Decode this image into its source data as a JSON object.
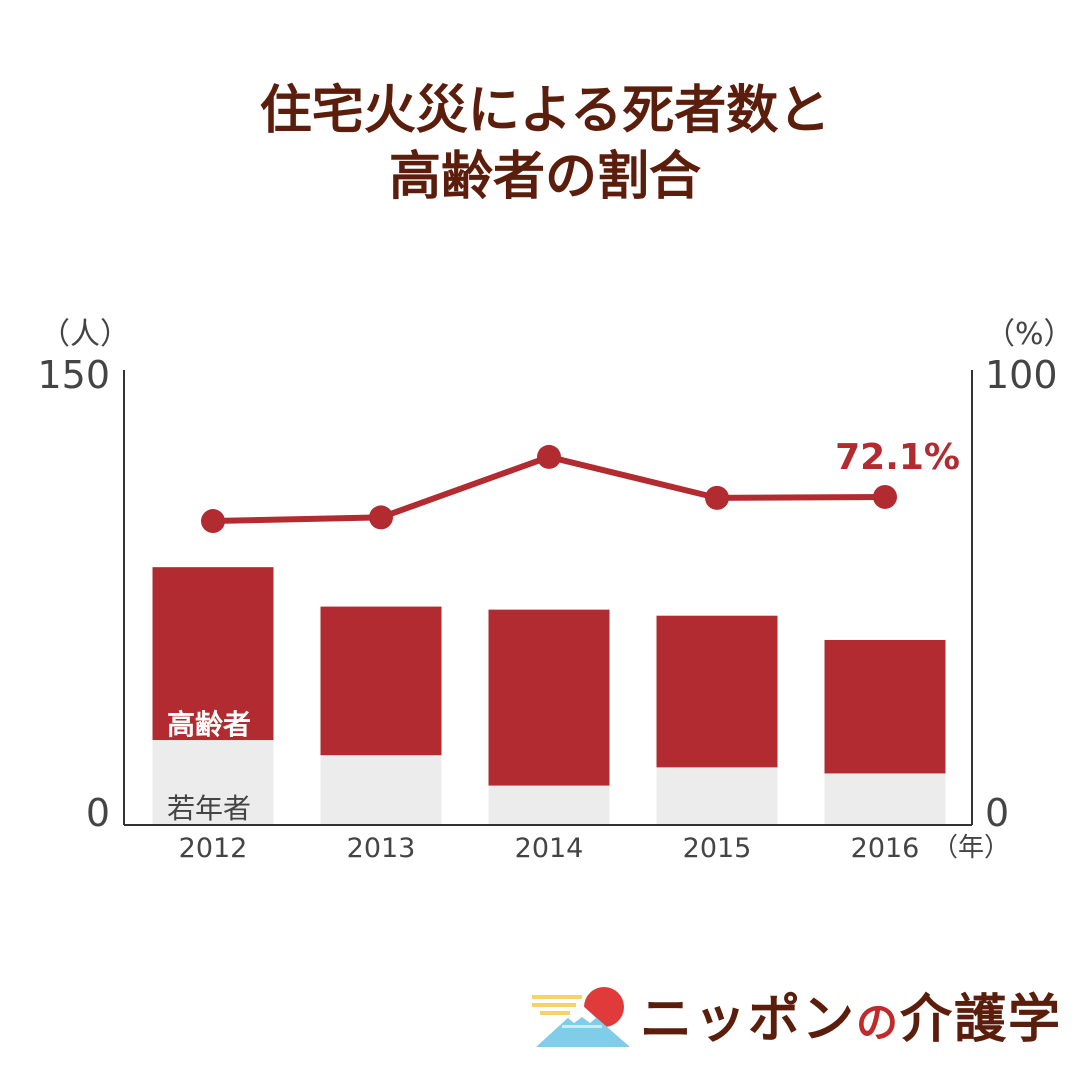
{
  "title": {
    "line1": "住宅火災による死者数と",
    "line2": "高齢者の割合"
  },
  "chart_data": {
    "type": "bar",
    "categories": [
      "2012",
      "2013",
      "2014",
      "2015",
      "2016"
    ],
    "series": [
      {
        "name": "若年者",
        "values": [
          28,
          23,
          13,
          19,
          17
        ]
      },
      {
        "name": "高齢者",
        "values": [
          57,
          49,
          58,
          50,
          44
        ]
      }
    ],
    "line_series": {
      "values": [
        66.8,
        67.6,
        80.9,
        71.9,
        72.1
      ]
    },
    "left_axis": {
      "unit": "（人）",
      "min_label": "0",
      "max_label": "150",
      "range": [
        0,
        150
      ]
    },
    "right_axis": {
      "unit": "（%）",
      "min_label": "0",
      "max_label": "100",
      "range": [
        0,
        100
      ]
    },
    "x_unit": "（年）",
    "line_label": "72.1%",
    "colors": {
      "elderly": "#b22b30",
      "young": "#ececec",
      "line": "#b22b30",
      "title": "#5c1e0c"
    }
  },
  "logo": {
    "main": "ニッポン",
    "no": "の",
    "suffix": "介護学"
  }
}
